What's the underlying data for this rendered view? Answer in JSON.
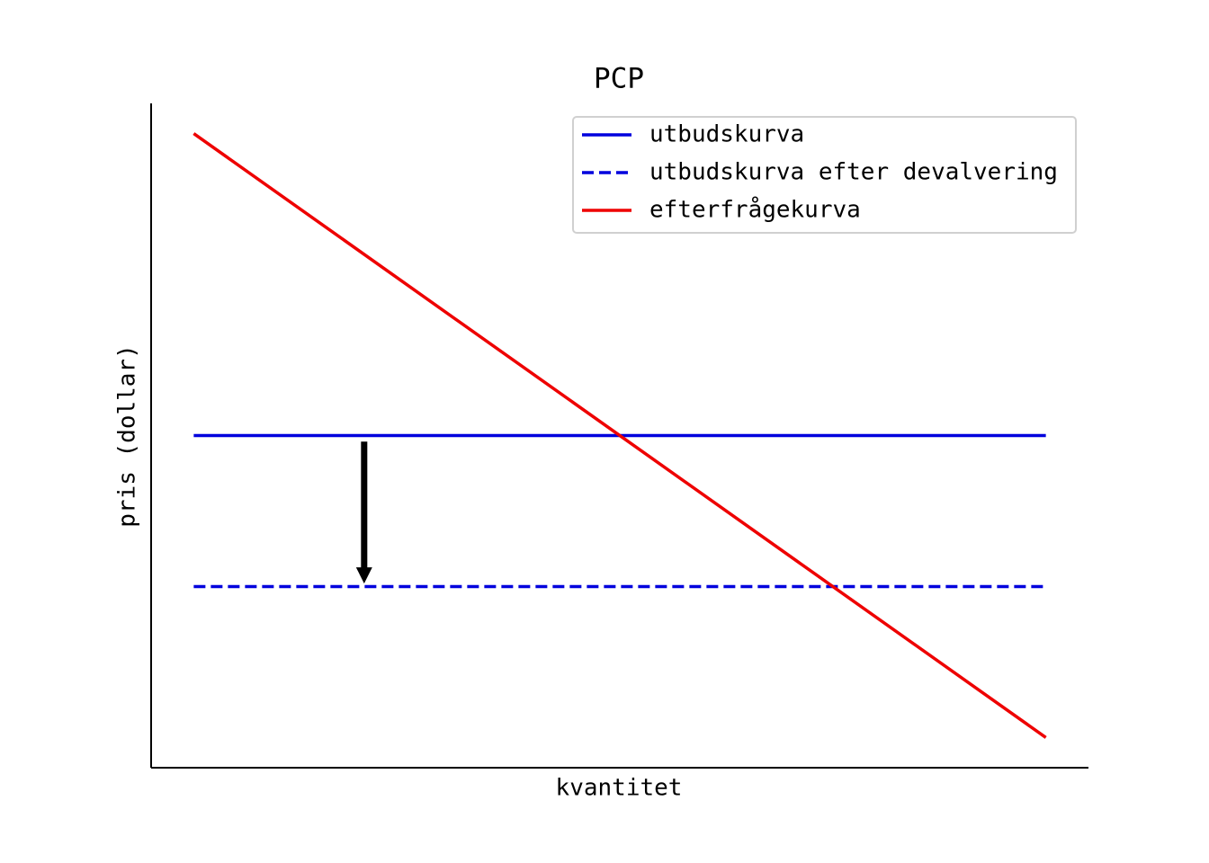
{
  "chart_data": {
    "type": "line",
    "title": "PCP",
    "x_label": "kvantitet",
    "y_label": "pris (dollar)",
    "x": [
      0,
      10
    ],
    "series": [
      {
        "name": "utbudskurva",
        "color": "#0000dd",
        "linestyle": "solid",
        "values": [
          5,
          5
        ]
      },
      {
        "name": "utbudskurva efter devalvering",
        "color": "#0000dd",
        "linestyle": "dashed",
        "values": [
          2.5,
          2.5
        ]
      },
      {
        "name": "efterfrågekurva",
        "color": "#ee0000",
        "linestyle": "solid",
        "values": [
          10,
          0
        ]
      }
    ],
    "arrow": {
      "x": 2,
      "from": 4.9,
      "to": 2.55,
      "color": "#000000"
    },
    "xlim": [
      -0.5,
      10.5
    ],
    "ylim": [
      -0.5,
      10.5
    ],
    "legend": "upper right"
  }
}
